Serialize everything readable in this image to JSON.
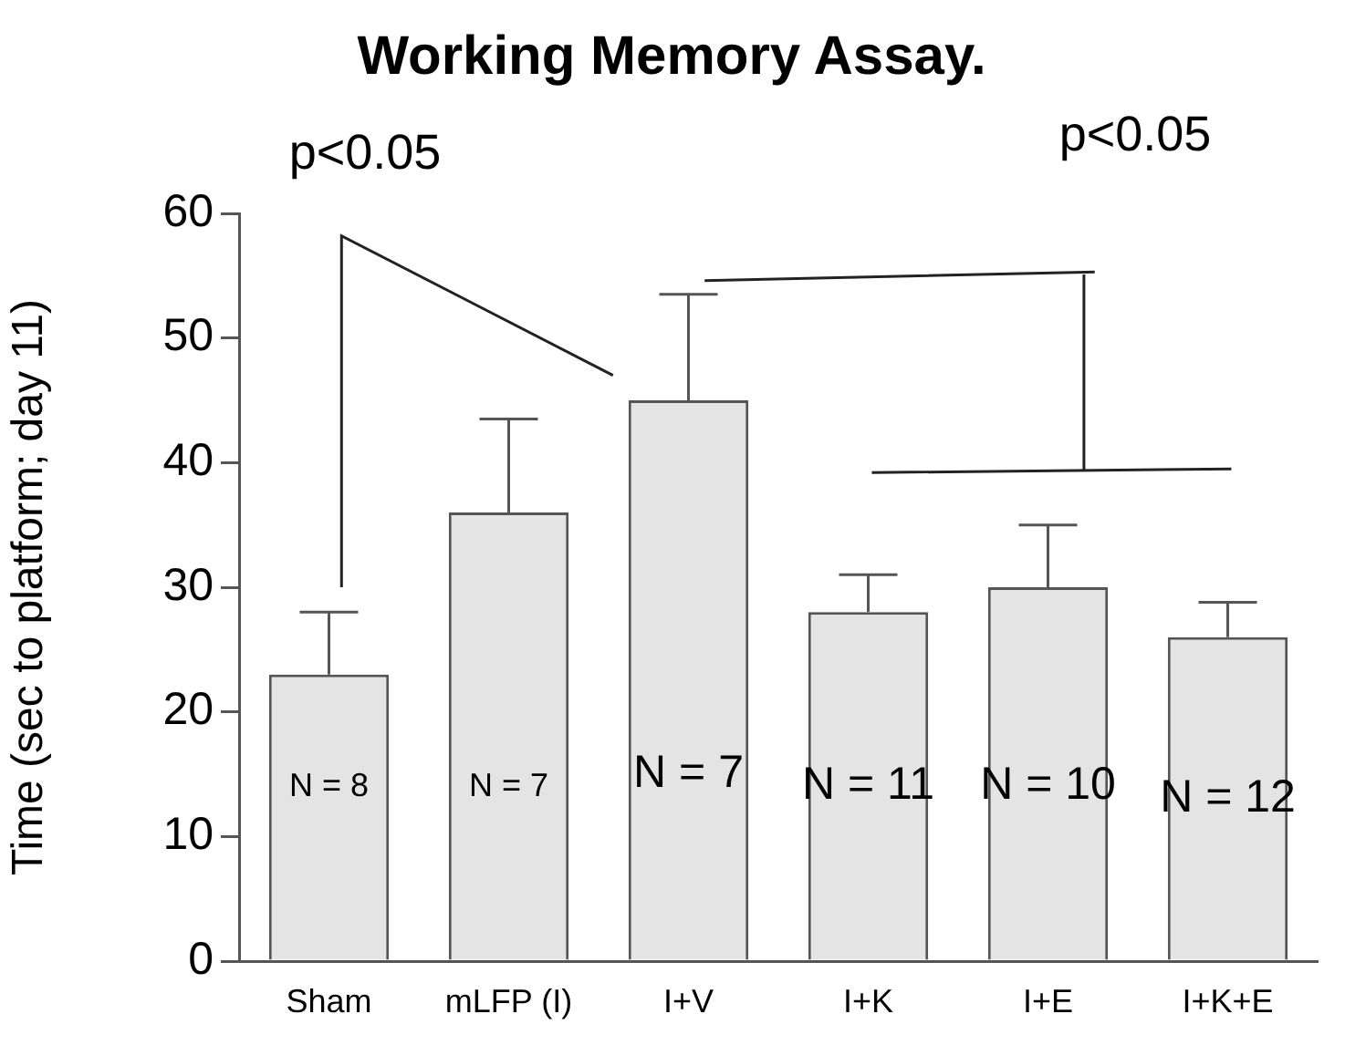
{
  "chart_data": {
    "type": "bar",
    "title": "Working Memory Assay.",
    "ylabel": "Time (sec to platform; day 11)",
    "categories": [
      "Sham",
      "mLFP (I)",
      "I+V",
      "I+K",
      "I+E",
      "I+K+E"
    ],
    "values": [
      23,
      36,
      45,
      28,
      30,
      26
    ],
    "errors": [
      [
        23,
        28
      ],
      [
        36,
        43.5
      ],
      [
        45,
        53.5
      ],
      [
        28,
        31
      ],
      [
        30,
        35
      ],
      [
        26,
        28.8
      ]
    ],
    "color": "#e4e4e4",
    "ylim": [
      0,
      60
    ],
    "yticks": [
      0,
      10,
      20,
      30,
      40,
      50,
      60
    ],
    "grid": false,
    "legend": false,
    "annotations": [
      "p<0.05",
      "p<0.05",
      "N = 8",
      "N = 7",
      "N = 7",
      "N = 11",
      "N = 10",
      "N = 12"
    ]
  }
}
